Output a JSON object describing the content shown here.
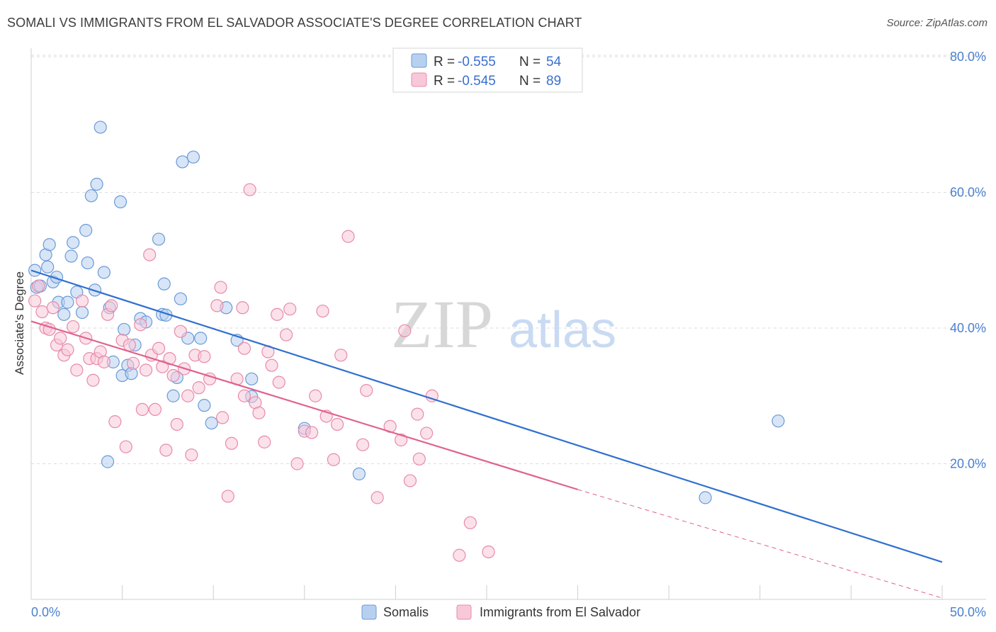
{
  "title": "SOMALI VS IMMIGRANTS FROM EL SALVADOR ASSOCIATE'S DEGREE CORRELATION CHART",
  "source": "Source: ZipAtlas.com",
  "watermark": {
    "zip": "ZIP",
    "atlas": "atlas"
  },
  "colors": {
    "blue_fill": "#b8d0f0",
    "blue_stroke": "#6a9ad8",
    "blue_line": "#2f6fd0",
    "pink_fill": "#f8c8d8",
    "pink_stroke": "#e88aaa",
    "pink_line": "#e0628e",
    "grid": "#dddddd",
    "axis_text": "#4a7fd0"
  },
  "legend": {
    "rows": [
      {
        "r_label": "R = ",
        "r_value": "-0.555",
        "n_label": "N = ",
        "n_value": "54"
      },
      {
        "r_label": "R = ",
        "r_value": "-0.545",
        "n_label": "N = ",
        "n_value": "89"
      }
    ]
  },
  "bottom_legend": [
    "Somalis",
    "Immigrants from El Salvador"
  ],
  "chart_data": {
    "type": "scatter",
    "title": "SOMALI VS IMMIGRANTS FROM EL SALVADOR ASSOCIATE'S DEGREE CORRELATION CHART",
    "xlabel": "",
    "ylabel": "Associate's Degree",
    "xlim": [
      0,
      50
    ],
    "ylim": [
      0,
      80
    ],
    "x_tick_labels": [
      "0.0%",
      "50.0%"
    ],
    "y_ticks": [
      20,
      40,
      60,
      80
    ],
    "y_tick_labels": [
      "20.0%",
      "40.0%",
      "60.0%",
      "80.0%"
    ],
    "grid": true,
    "legend_position": "top-center",
    "series": [
      {
        "name": "Somalis",
        "color": "blue",
        "r": -0.555,
        "n": 54,
        "trend": {
          "x": [
            0,
            50
          ],
          "y": [
            48.5,
            5.5
          ]
        },
        "points": [
          [
            0.2,
            48.5
          ],
          [
            0.3,
            46.0
          ],
          [
            0.5,
            46.2
          ],
          [
            0.8,
            50.8
          ],
          [
            0.9,
            49.0
          ],
          [
            1.0,
            52.3
          ],
          [
            1.2,
            46.8
          ],
          [
            1.4,
            47.5
          ],
          [
            1.5,
            43.8
          ],
          [
            1.8,
            42.0
          ],
          [
            2.0,
            43.8
          ],
          [
            2.2,
            50.6
          ],
          [
            2.3,
            52.6
          ],
          [
            2.5,
            45.3
          ],
          [
            2.8,
            42.3
          ],
          [
            3.0,
            54.4
          ],
          [
            3.1,
            49.6
          ],
          [
            3.3,
            59.5
          ],
          [
            3.5,
            45.6
          ],
          [
            3.6,
            61.2
          ],
          [
            3.8,
            69.6
          ],
          [
            4.0,
            48.2
          ],
          [
            4.2,
            20.3
          ],
          [
            4.3,
            43.0
          ],
          [
            4.5,
            35.0
          ],
          [
            4.9,
            58.6
          ],
          [
            5.0,
            33.0
          ],
          [
            5.1,
            39.8
          ],
          [
            5.3,
            34.5
          ],
          [
            5.5,
            33.3
          ],
          [
            5.7,
            37.5
          ],
          [
            6.0,
            41.4
          ],
          [
            6.3,
            40.9
          ],
          [
            7.0,
            53.1
          ],
          [
            7.2,
            42.0
          ],
          [
            7.3,
            46.5
          ],
          [
            7.4,
            41.9
          ],
          [
            7.8,
            30.0
          ],
          [
            8.0,
            32.7
          ],
          [
            8.2,
            44.3
          ],
          [
            8.3,
            64.5
          ],
          [
            8.6,
            38.5
          ],
          [
            8.9,
            65.2
          ],
          [
            9.3,
            38.5
          ],
          [
            9.5,
            28.6
          ],
          [
            9.9,
            26.0
          ],
          [
            10.7,
            43.0
          ],
          [
            11.3,
            38.2
          ],
          [
            12.1,
            32.5
          ],
          [
            12.1,
            29.9
          ],
          [
            15.0,
            25.2
          ],
          [
            18.0,
            18.5
          ],
          [
            41.0,
            26.3
          ],
          [
            37.0,
            15.0
          ]
        ]
      },
      {
        "name": "Immigrants from El Salvador",
        "color": "pink",
        "r": -0.545,
        "n": 89,
        "trend": {
          "x": [
            0,
            30
          ],
          "y": [
            41.0,
            16.2
          ]
        },
        "trend_dashed": {
          "x": [
            30,
            50
          ],
          "y": [
            16.2,
            0.2
          ]
        },
        "points": [
          [
            0.2,
            44.0
          ],
          [
            0.4,
            46.2
          ],
          [
            0.6,
            42.4
          ],
          [
            0.8,
            40.0
          ],
          [
            1.0,
            39.8
          ],
          [
            1.2,
            43.0
          ],
          [
            1.4,
            37.5
          ],
          [
            1.6,
            38.5
          ],
          [
            1.8,
            36.0
          ],
          [
            2.0,
            36.8
          ],
          [
            2.3,
            40.2
          ],
          [
            2.5,
            33.8
          ],
          [
            2.8,
            44.0
          ],
          [
            3.0,
            38.5
          ],
          [
            3.2,
            35.5
          ],
          [
            3.4,
            32.3
          ],
          [
            3.6,
            35.5
          ],
          [
            3.8,
            36.5
          ],
          [
            4.0,
            35.0
          ],
          [
            4.2,
            42.0
          ],
          [
            4.4,
            43.3
          ],
          [
            4.6,
            26.2
          ],
          [
            5.0,
            38.2
          ],
          [
            5.2,
            22.5
          ],
          [
            5.4,
            37.5
          ],
          [
            5.6,
            34.8
          ],
          [
            6.0,
            40.5
          ],
          [
            6.1,
            28.0
          ],
          [
            6.3,
            33.8
          ],
          [
            6.5,
            50.8
          ],
          [
            6.6,
            36.0
          ],
          [
            6.8,
            28.0
          ],
          [
            7.0,
            37.0
          ],
          [
            7.2,
            34.3
          ],
          [
            7.4,
            22.0
          ],
          [
            7.6,
            35.5
          ],
          [
            7.8,
            33.0
          ],
          [
            8.0,
            25.8
          ],
          [
            8.2,
            39.5
          ],
          [
            8.4,
            34.0
          ],
          [
            8.6,
            30.0
          ],
          [
            8.8,
            21.3
          ],
          [
            9.0,
            36.0
          ],
          [
            9.2,
            31.2
          ],
          [
            9.5,
            35.8
          ],
          [
            9.8,
            32.5
          ],
          [
            10.2,
            43.3
          ],
          [
            10.4,
            46.0
          ],
          [
            10.5,
            26.8
          ],
          [
            10.8,
            15.2
          ],
          [
            11.0,
            23.0
          ],
          [
            11.3,
            32.5
          ],
          [
            11.6,
            43.0
          ],
          [
            11.7,
            37.0
          ],
          [
            12.0,
            60.4
          ],
          [
            12.3,
            29.0
          ],
          [
            12.5,
            27.5
          ],
          [
            12.8,
            23.2
          ],
          [
            13.0,
            36.5
          ],
          [
            13.2,
            34.5
          ],
          [
            13.5,
            42.0
          ],
          [
            13.6,
            32.0
          ],
          [
            14.0,
            39.0
          ],
          [
            14.2,
            42.8
          ],
          [
            14.6,
            20.0
          ],
          [
            15.0,
            24.8
          ],
          [
            15.4,
            24.6
          ],
          [
            15.6,
            30.0
          ],
          [
            16.0,
            42.5
          ],
          [
            16.2,
            27.0
          ],
          [
            16.6,
            20.6
          ],
          [
            16.8,
            25.8
          ],
          [
            17.0,
            36.0
          ],
          [
            17.4,
            53.5
          ],
          [
            18.2,
            22.8
          ],
          [
            18.4,
            30.8
          ],
          [
            19.0,
            15.0
          ],
          [
            19.7,
            25.5
          ],
          [
            20.3,
            23.5
          ],
          [
            20.5,
            39.6
          ],
          [
            20.8,
            17.5
          ],
          [
            21.2,
            27.3
          ],
          [
            21.3,
            20.7
          ],
          [
            21.7,
            24.5
          ],
          [
            22.0,
            30.0
          ],
          [
            23.5,
            6.5
          ],
          [
            24.1,
            11.3
          ],
          [
            25.1,
            7.0
          ],
          [
            11.7,
            30.0
          ]
        ]
      }
    ]
  }
}
